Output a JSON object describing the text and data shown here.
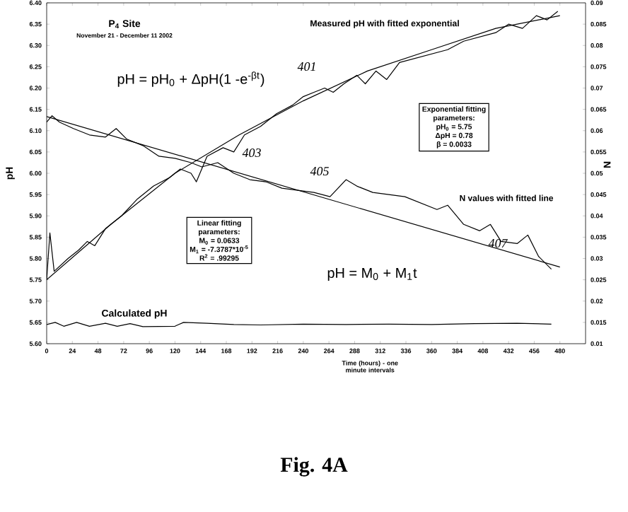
{
  "chart_data": {
    "type": "line",
    "xlabel": "Time (hours) - one minute intervals",
    "ylabel": "pH",
    "y2label": "N",
    "xlim": [
      0,
      504
    ],
    "xticks": [
      0,
      24,
      48,
      72,
      96,
      120,
      144,
      168,
      192,
      216,
      240,
      264,
      288,
      312,
      336,
      360,
      384,
      408,
      432,
      456,
      480
    ],
    "ylim": [
      5.6,
      6.4
    ],
    "yticks": [
      {
        "value": 5.6,
        "label": "5.60"
      },
      {
        "value": 5.65,
        "label": "5.65"
      },
      {
        "value": 5.7,
        "label": "5.70"
      },
      {
        "value": 5.75,
        "label": "5.75"
      },
      {
        "value": 5.8,
        "label": "5.80"
      },
      {
        "value": 5.85,
        "label": "5.85"
      },
      {
        "value": 5.9,
        "label": "5.90"
      },
      {
        "value": 5.95,
        "label": "5.95"
      },
      {
        "value": 6.0,
        "label": "6.00"
      },
      {
        "value": 6.05,
        "label": "6.05"
      },
      {
        "value": 6.1,
        "label": "6.10"
      },
      {
        "value": 6.15,
        "label": "6.15"
      },
      {
        "value": 6.2,
        "label": "6.20"
      },
      {
        "value": 6.25,
        "label": "6.25"
      },
      {
        "value": 6.3,
        "label": "6.30"
      },
      {
        "value": 6.35,
        "label": "6.35"
      },
      {
        "value": 6.4,
        "label": "6.40"
      }
    ],
    "y2lim": [
      0.01,
      0.09
    ],
    "y2ticks": [
      0.01,
      0.015,
      0.02,
      0.025,
      0.03,
      0.035,
      0.04,
      0.045,
      0.05,
      0.055,
      0.06,
      0.065,
      0.07,
      0.075,
      0.08,
      0.085,
      0.09
    ],
    "marker": "none",
    "series": [
      {
        "color": "#000000",
        "x": [
          0,
          3,
          7,
          20,
          30,
          38,
          45,
          55,
          70,
          85,
          100,
          115,
          125,
          135,
          140,
          150,
          165,
          175,
          185,
          200,
          215,
          230,
          240,
          250,
          260,
          268,
          278,
          290,
          298,
          308,
          318,
          330,
          345,
          360,
          375,
          390,
          405,
          420,
          432,
          445,
          458,
          468,
          478
        ],
        "values": [
          5.75,
          5.86,
          5.77,
          5.8,
          5.82,
          5.84,
          5.83,
          5.87,
          5.9,
          5.94,
          5.97,
          5.99,
          6.01,
          6.0,
          5.98,
          6.04,
          6.06,
          6.05,
          6.09,
          6.11,
          6.14,
          6.16,
          6.18,
          6.19,
          6.2,
          6.19,
          6.21,
          6.23,
          6.21,
          6.24,
          6.22,
          6.26,
          6.27,
          6.28,
          6.29,
          6.31,
          6.32,
          6.33,
          6.35,
          6.34,
          6.37,
          6.36,
          6.38
        ]
      },
      {
        "color": "#000000",
        "x": [
          0,
          60,
          120,
          180,
          240,
          300,
          360,
          420,
          480
        ],
        "values": [
          5.75,
          5.88,
          6.0,
          6.09,
          6.17,
          6.24,
          6.29,
          6.34,
          6.37
        ]
      },
      {
        "color": "#000000",
        "axis": "y2",
        "x": [
          0,
          5,
          12,
          25,
          40,
          55,
          65,
          75,
          90,
          105,
          120,
          135,
          145,
          160,
          175,
          190,
          205,
          220,
          235,
          250,
          265,
          280,
          290,
          305,
          320,
          335,
          350,
          365,
          375,
          390,
          405,
          415,
          425,
          440,
          450,
          460,
          472
        ],
        "values": [
          0.062,
          0.0635,
          0.062,
          0.0605,
          0.059,
          0.0585,
          0.0605,
          0.058,
          0.0565,
          0.054,
          0.0535,
          0.0525,
          0.0515,
          0.0525,
          0.05,
          0.0485,
          0.048,
          0.0465,
          0.046,
          0.0455,
          0.0445,
          0.0485,
          0.047,
          0.0455,
          0.045,
          0.0445,
          0.043,
          0.0415,
          0.0425,
          0.038,
          0.0365,
          0.038,
          0.034,
          0.0335,
          0.0355,
          0.0305,
          0.0275
        ]
      },
      {
        "color": "#000000",
        "axis": "y2",
        "x": [
          0,
          480
        ],
        "values": [
          0.0633,
          0.028
        ]
      },
      {
        "color": "#000000",
        "x": [
          0,
          8,
          16,
          28,
          40,
          55,
          66,
          78,
          90,
          120,
          128,
          150,
          175,
          200,
          240,
          280,
          320,
          360,
          400,
          440,
          472
        ],
        "values": [
          5.645,
          5.65,
          5.641,
          5.65,
          5.641,
          5.648,
          5.641,
          5.647,
          5.64,
          5.641,
          5.65,
          5.648,
          5.645,
          5.644,
          5.646,
          5.645,
          5.646,
          5.645,
          5.647,
          5.648,
          5.646
        ]
      }
    ],
    "annotations": [
      "P$_{4}$ Site",
      "November 21 - December 11 2002",
      "Measured pH with fitted exponential",
      "pH = pH$_{0}$ + ΔpH(1 -e$^{-βt}$)",
      "401",
      "403",
      "405",
      "407",
      "Exponential fitting",
      "parameters:",
      "pH$_{0}$ = 5.75",
      "ΔpH = 0.78",
      "β = 0.0033",
      "Linear fitting",
      "parameters:",
      "M$_{0}$ = 0.0633",
      "M$_{1}$ = -7.3787*10$^{-5}$",
      "R$^{2}$ = .99295",
      "N values with fitted line",
      "pH = M$_{0}$ + M$_{1}$t",
      "Calculated pH",
      "Fig. 4A"
    ]
  }
}
